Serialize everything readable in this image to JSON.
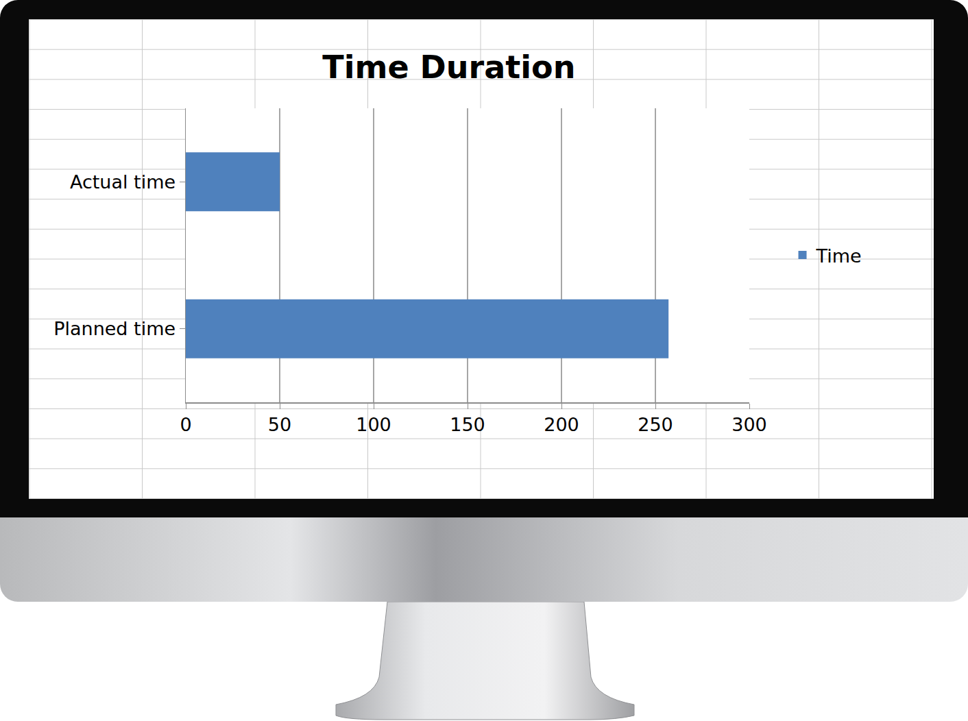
{
  "chart_data": {
    "type": "bar",
    "title": "Time Duration",
    "orientation": "horizontal",
    "categories": [
      "Planned time",
      "Actual time"
    ],
    "series": [
      {
        "name": "Time",
        "color": "#4f81bd",
        "values": [
          257,
          50
        ]
      }
    ],
    "xlim": [
      0,
      300
    ],
    "xticks": [
      0,
      50,
      100,
      150,
      200,
      250,
      300
    ],
    "grid": true,
    "legend": "right"
  }
}
